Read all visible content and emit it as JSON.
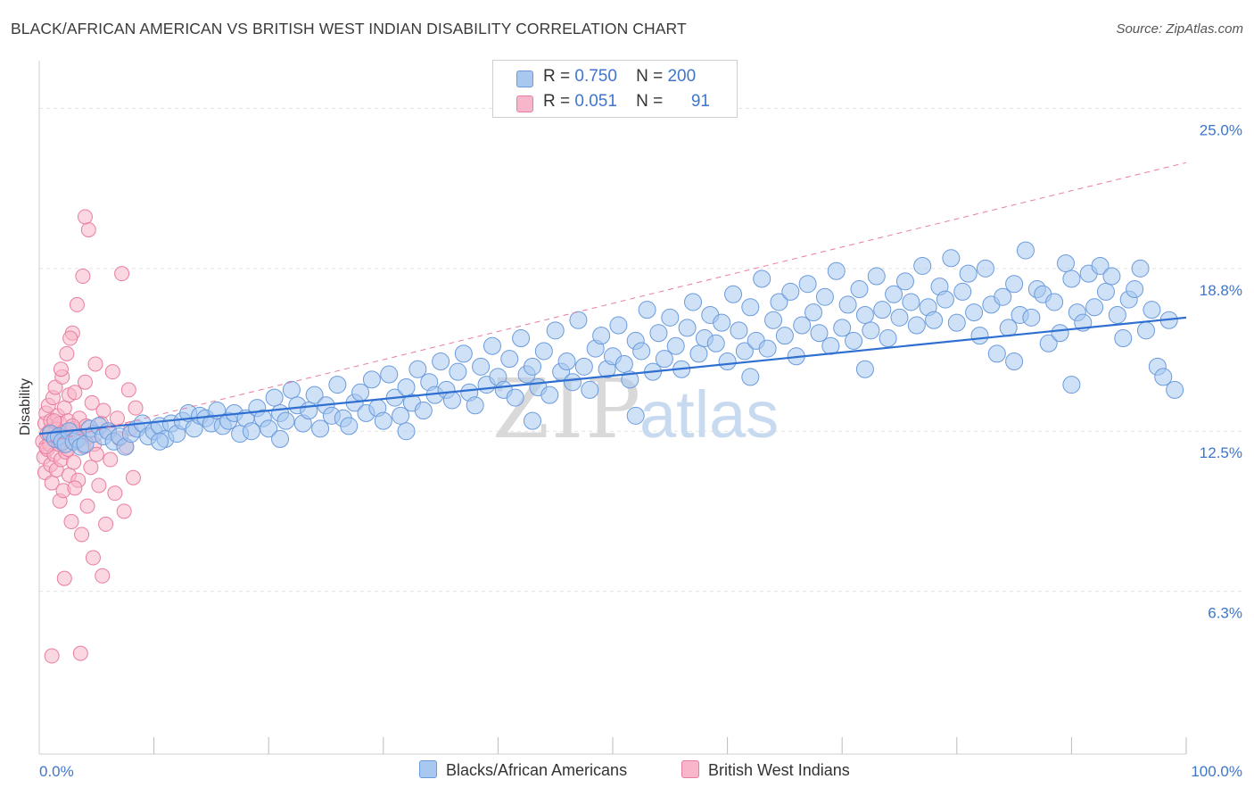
{
  "title": "BLACK/AFRICAN AMERICAN VS BRITISH WEST INDIAN DISABILITY CORRELATION CHART",
  "source": "Source: ZipAtlas.com",
  "watermark": {
    "zip": "ZIP",
    "atlas": "atlas"
  },
  "legend": {
    "rows": [
      {
        "r_label": "R =",
        "r_value": "0.750",
        "n_label": "N =",
        "n_value": "200",
        "color": "#a8c8f0"
      },
      {
        "r_label": "R =",
        "r_value": "0.051",
        "n_label": "N =",
        "n_value": "91",
        "color": "#f7b6c9"
      }
    ]
  },
  "bottom_legend": [
    {
      "label": "Blacks/African Americans",
      "color": "#a8c8f0"
    },
    {
      "label": "British West Indians",
      "color": "#f7b6c9"
    }
  ],
  "chart_data": {
    "type": "scatter",
    "title": "BLACK/AFRICAN AMERICAN VS BRITISH WEST INDIAN DISABILITY CORRELATION CHART",
    "xlabel": "",
    "ylabel": "Disability",
    "xlim": [
      0,
      100
    ],
    "ylim": [
      0,
      26.5
    ],
    "x_tick_labels": [
      "0.0%",
      "100.0%"
    ],
    "y_ticks": [
      6.3,
      12.5,
      18.8,
      25.0
    ],
    "y_tick_labels": [
      "6.3%",
      "12.5%",
      "18.8%",
      "25.0%"
    ],
    "grid": true,
    "legend_position": "top-center",
    "series": [
      {
        "name": "Blacks/African Americans",
        "color": "#a8c8f0",
        "edge": "#6b9bdc",
        "trend": {
          "x": [
            0,
            100
          ],
          "y": [
            12.4,
            16.9
          ],
          "color": "#2f6fd1",
          "style": "solid"
        },
        "points": [
          [
            1.0,
            12.4
          ],
          [
            1.4,
            12.2
          ],
          [
            1.7,
            12.3
          ],
          [
            2.0,
            12.1
          ],
          [
            2.3,
            12.0
          ],
          [
            2.6,
            12.5
          ],
          [
            3.0,
            12.1
          ],
          [
            3.3,
            12.2
          ],
          [
            3.6,
            11.9
          ],
          [
            4.0,
            12.0
          ],
          [
            4.4,
            12.6
          ],
          [
            4.8,
            12.4
          ],
          [
            5.2,
            12.7
          ],
          [
            5.6,
            12.3
          ],
          [
            6.0,
            12.5
          ],
          [
            6.5,
            12.1
          ],
          [
            7.0,
            12.3
          ],
          [
            7.5,
            11.9
          ],
          [
            8.0,
            12.4
          ],
          [
            8.5,
            12.6
          ],
          [
            9.0,
            12.8
          ],
          [
            9.5,
            12.3
          ],
          [
            10.0,
            12.5
          ],
          [
            10.5,
            12.7
          ],
          [
            11.0,
            12.2
          ],
          [
            11.5,
            12.8
          ],
          [
            12.0,
            12.4
          ],
          [
            12.5,
            12.9
          ],
          [
            13.0,
            13.2
          ],
          [
            13.5,
            12.6
          ],
          [
            14.0,
            13.1
          ],
          [
            14.5,
            13.0
          ],
          [
            15.0,
            12.8
          ],
          [
            15.5,
            13.3
          ],
          [
            16.0,
            12.7
          ],
          [
            16.5,
            12.9
          ],
          [
            17.0,
            13.2
          ],
          [
            17.5,
            12.4
          ],
          [
            18.0,
            13.0
          ],
          [
            18.5,
            12.5
          ],
          [
            19.0,
            13.4
          ],
          [
            19.5,
            13.0
          ],
          [
            20.0,
            12.6
          ],
          [
            20.5,
            13.8
          ],
          [
            21.0,
            13.2
          ],
          [
            21.5,
            12.9
          ],
          [
            22.0,
            14.1
          ],
          [
            22.5,
            13.5
          ],
          [
            23.0,
            12.8
          ],
          [
            23.5,
            13.3
          ],
          [
            24.0,
            13.9
          ],
          [
            24.5,
            12.6
          ],
          [
            25.0,
            13.5
          ],
          [
            25.5,
            13.1
          ],
          [
            26.0,
            14.3
          ],
          [
            26.5,
            13.0
          ],
          [
            27.0,
            12.7
          ],
          [
            27.5,
            13.6
          ],
          [
            28.0,
            14.0
          ],
          [
            28.5,
            13.2
          ],
          [
            29.0,
            14.5
          ],
          [
            29.5,
            13.4
          ],
          [
            30.0,
            12.9
          ],
          [
            30.5,
            14.7
          ],
          [
            31.0,
            13.8
          ],
          [
            31.5,
            13.1
          ],
          [
            32.0,
            14.2
          ],
          [
            32.5,
            13.6
          ],
          [
            33.0,
            14.9
          ],
          [
            33.5,
            13.3
          ],
          [
            34.0,
            14.4
          ],
          [
            34.5,
            13.9
          ],
          [
            35.0,
            15.2
          ],
          [
            35.5,
            14.1
          ],
          [
            36.0,
            13.7
          ],
          [
            36.5,
            14.8
          ],
          [
            37.0,
            15.5
          ],
          [
            37.5,
            14.0
          ],
          [
            38.0,
            13.5
          ],
          [
            38.5,
            15.0
          ],
          [
            39.0,
            14.3
          ],
          [
            39.5,
            15.8
          ],
          [
            40.0,
            14.6
          ],
          [
            40.5,
            14.1
          ],
          [
            41.0,
            15.3
          ],
          [
            41.5,
            13.8
          ],
          [
            42.0,
            16.1
          ],
          [
            42.5,
            14.7
          ],
          [
            43.0,
            15.0
          ],
          [
            43.5,
            14.2
          ],
          [
            44.0,
            15.6
          ],
          [
            44.5,
            13.9
          ],
          [
            45.0,
            16.4
          ],
          [
            45.5,
            14.8
          ],
          [
            46.0,
            15.2
          ],
          [
            46.5,
            14.4
          ],
          [
            47.0,
            16.8
          ],
          [
            47.5,
            15.0
          ],
          [
            48.0,
            14.1
          ],
          [
            48.5,
            15.7
          ],
          [
            49.0,
            16.2
          ],
          [
            49.5,
            14.9
          ],
          [
            50.0,
            15.4
          ],
          [
            50.5,
            16.6
          ],
          [
            51.0,
            15.1
          ],
          [
            51.5,
            14.5
          ],
          [
            52.0,
            16.0
          ],
          [
            52.5,
            15.6
          ],
          [
            53.0,
            17.2
          ],
          [
            53.5,
            14.8
          ],
          [
            54.0,
            16.3
          ],
          [
            54.5,
            15.3
          ],
          [
            55.0,
            16.9
          ],
          [
            55.5,
            15.8
          ],
          [
            56.0,
            14.9
          ],
          [
            56.5,
            16.5
          ],
          [
            57.0,
            17.5
          ],
          [
            57.5,
            15.5
          ],
          [
            58.0,
            16.1
          ],
          [
            58.5,
            17.0
          ],
          [
            59.0,
            15.9
          ],
          [
            59.5,
            16.7
          ],
          [
            60.0,
            15.2
          ],
          [
            60.5,
            17.8
          ],
          [
            61.0,
            16.4
          ],
          [
            61.5,
            15.6
          ],
          [
            62.0,
            17.3
          ],
          [
            62.5,
            16.0
          ],
          [
            63.0,
            18.4
          ],
          [
            63.5,
            15.7
          ],
          [
            64.0,
            16.8
          ],
          [
            64.5,
            17.5
          ],
          [
            65.0,
            16.2
          ],
          [
            65.5,
            17.9
          ],
          [
            66.0,
            15.4
          ],
          [
            66.5,
            16.6
          ],
          [
            67.0,
            18.2
          ],
          [
            67.5,
            17.1
          ],
          [
            68.0,
            16.3
          ],
          [
            68.5,
            17.7
          ],
          [
            69.0,
            15.8
          ],
          [
            69.5,
            18.7
          ],
          [
            70.0,
            16.5
          ],
          [
            70.5,
            17.4
          ],
          [
            71.0,
            16.0
          ],
          [
            71.5,
            18.0
          ],
          [
            72.0,
            17.0
          ],
          [
            72.5,
            16.4
          ],
          [
            73.0,
            18.5
          ],
          [
            73.5,
            17.2
          ],
          [
            74.0,
            16.1
          ],
          [
            74.5,
            17.8
          ],
          [
            75.0,
            16.9
          ],
          [
            75.5,
            18.3
          ],
          [
            76.0,
            17.5
          ],
          [
            76.5,
            16.6
          ],
          [
            77.0,
            18.9
          ],
          [
            77.5,
            17.3
          ],
          [
            78.0,
            16.8
          ],
          [
            78.5,
            18.1
          ],
          [
            79.0,
            17.6
          ],
          [
            79.5,
            19.2
          ],
          [
            80.0,
            16.7
          ],
          [
            80.5,
            17.9
          ],
          [
            81.0,
            18.6
          ],
          [
            81.5,
            17.1
          ],
          [
            82.0,
            16.2
          ],
          [
            82.5,
            18.8
          ],
          [
            83.0,
            17.4
          ],
          [
            83.5,
            15.5
          ],
          [
            84.0,
            17.7
          ],
          [
            84.5,
            16.5
          ],
          [
            85.0,
            18.2
          ],
          [
            85.5,
            17.0
          ],
          [
            86.0,
            19.5
          ],
          [
            86.5,
            16.9
          ],
          [
            87.0,
            18.0
          ],
          [
            87.5,
            17.8
          ],
          [
            88.0,
            15.9
          ],
          [
            88.5,
            17.5
          ],
          [
            89.0,
            16.3
          ],
          [
            89.5,
            19.0
          ],
          [
            90.0,
            18.4
          ],
          [
            90.5,
            17.1
          ],
          [
            91.0,
            16.7
          ],
          [
            91.5,
            18.6
          ],
          [
            92.0,
            17.3
          ],
          [
            92.5,
            18.9
          ],
          [
            93.0,
            17.9
          ],
          [
            93.5,
            18.5
          ],
          [
            94.0,
            17.0
          ],
          [
            94.5,
            16.1
          ],
          [
            95.0,
            17.6
          ],
          [
            95.5,
            18.0
          ],
          [
            96.0,
            18.8
          ],
          [
            96.5,
            16.4
          ],
          [
            97.0,
            17.2
          ],
          [
            97.5,
            15.0
          ],
          [
            98.0,
            14.6
          ],
          [
            98.5,
            16.8
          ],
          [
            10.5,
            12.1
          ],
          [
            21.0,
            12.2
          ],
          [
            32.0,
            12.5
          ],
          [
            43.0,
            12.9
          ],
          [
            52.0,
            13.1
          ],
          [
            62.0,
            14.6
          ],
          [
            72.0,
            14.9
          ],
          [
            85.0,
            15.2
          ],
          [
            90.0,
            14.3
          ],
          [
            99.0,
            14.1
          ]
        ]
      },
      {
        "name": "British West Indians",
        "color": "#f7b6c9",
        "edge": "#e87da0",
        "trend": {
          "x": [
            0,
            100
          ],
          "y": [
            12.0,
            22.9
          ],
          "color": "#e87da0",
          "style": "dashed"
        },
        "points": [
          [
            0.3,
            12.1
          ],
          [
            0.4,
            11.5
          ],
          [
            0.5,
            12.8
          ],
          [
            0.5,
            10.9
          ],
          [
            0.6,
            13.2
          ],
          [
            0.7,
            12.4
          ],
          [
            0.7,
            11.8
          ],
          [
            0.8,
            13.5
          ],
          [
            0.9,
            12.0
          ],
          [
            1.0,
            11.2
          ],
          [
            1.0,
            12.9
          ],
          [
            1.1,
            10.5
          ],
          [
            1.2,
            13.8
          ],
          [
            1.2,
            12.2
          ],
          [
            1.3,
            11.6
          ],
          [
            1.4,
            14.2
          ],
          [
            1.5,
            12.6
          ],
          [
            1.5,
            11.0
          ],
          [
            1.6,
            13.1
          ],
          [
            1.7,
            12.3
          ],
          [
            1.8,
            9.8
          ],
          [
            1.8,
            12.8
          ],
          [
            1.9,
            11.4
          ],
          [
            2.0,
            14.6
          ],
          [
            2.0,
            12.0
          ],
          [
            2.1,
            10.2
          ],
          [
            2.2,
            13.4
          ],
          [
            2.3,
            12.5
          ],
          [
            2.3,
            11.7
          ],
          [
            2.4,
            15.5
          ],
          [
            2.5,
            12.9
          ],
          [
            2.6,
            10.8
          ],
          [
            2.6,
            13.9
          ],
          [
            2.7,
            12.1
          ],
          [
            2.8,
            9.0
          ],
          [
            2.9,
            16.3
          ],
          [
            3.0,
            12.6
          ],
          [
            3.0,
            11.3
          ],
          [
            3.1,
            14.0
          ],
          [
            3.2,
            12.4
          ],
          [
            3.3,
            17.4
          ],
          [
            3.4,
            10.6
          ],
          [
            3.5,
            13.0
          ],
          [
            3.6,
            12.2
          ],
          [
            3.7,
            8.5
          ],
          [
            3.8,
            18.5
          ],
          [
            3.9,
            11.9
          ],
          [
            4.0,
            14.4
          ],
          [
            4.1,
            12.7
          ],
          [
            4.2,
            9.6
          ],
          [
            4.3,
            20.3
          ],
          [
            4.4,
            12.3
          ],
          [
            4.5,
            11.1
          ],
          [
            4.6,
            13.6
          ],
          [
            4.7,
            7.6
          ],
          [
            4.8,
            12.0
          ],
          [
            4.9,
            15.1
          ],
          [
            5.0,
            11.6
          ],
          [
            5.2,
            10.4
          ],
          [
            5.4,
            12.8
          ],
          [
            5.6,
            13.3
          ],
          [
            5.8,
            8.9
          ],
          [
            6.0,
            12.5
          ],
          [
            6.2,
            11.4
          ],
          [
            6.4,
            14.8
          ],
          [
            6.6,
            10.1
          ],
          [
            6.8,
            13.0
          ],
          [
            7.0,
            12.2
          ],
          [
            7.2,
            18.6
          ],
          [
            7.4,
            9.4
          ],
          [
            7.6,
            11.9
          ],
          [
            7.8,
            14.1
          ],
          [
            8.0,
            12.6
          ],
          [
            8.2,
            10.7
          ],
          [
            8.4,
            13.4
          ],
          [
            0.6,
            11.9
          ],
          [
            0.9,
            12.5
          ],
          [
            1.3,
            12.9
          ],
          [
            1.7,
            12.0
          ],
          [
            2.1,
            12.3
          ],
          [
            2.5,
            11.8
          ],
          [
            2.9,
            12.7
          ],
          [
            3.3,
            12.1
          ],
          [
            1.1,
            3.8
          ],
          [
            3.6,
            3.9
          ],
          [
            2.2,
            6.8
          ],
          [
            4.0,
            20.8
          ],
          [
            2.7,
            16.1
          ],
          [
            1.9,
            14.9
          ],
          [
            3.1,
            10.3
          ],
          [
            5.5,
            6.9
          ]
        ]
      }
    ]
  }
}
